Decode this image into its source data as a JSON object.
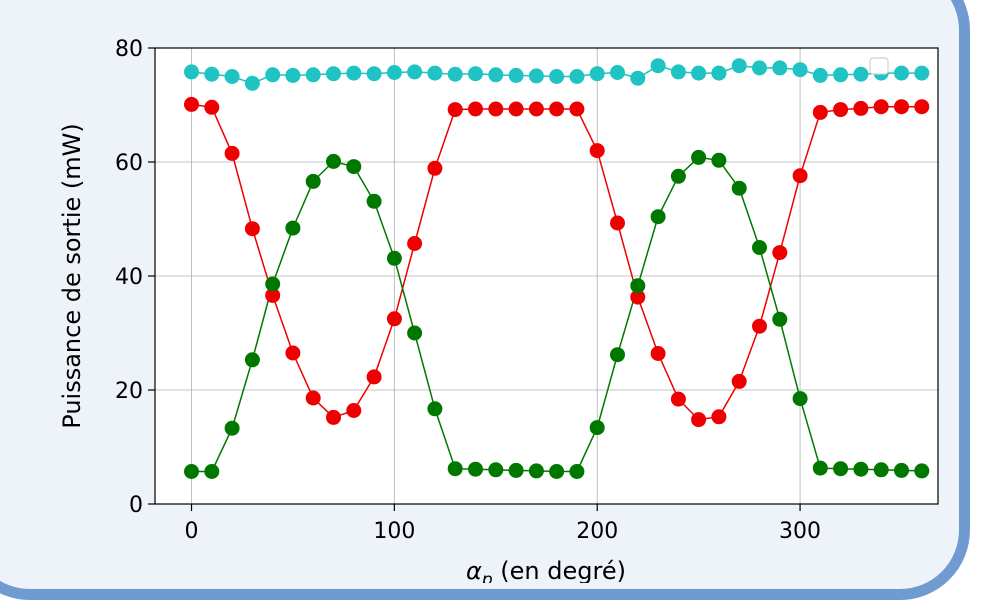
{
  "chart_data": {
    "type": "line",
    "xlabel_symbol": "α",
    "xlabel_subscript": "p",
    "xlabel_rest": " (en degré)",
    "ylabel": "Puissance de sortie (mW)",
    "xlim": [
      -18,
      368
    ],
    "ylim": [
      0,
      80
    ],
    "x_ticks": [
      0,
      100,
      200,
      300
    ],
    "y_ticks": [
      0,
      20,
      40,
      60,
      80
    ],
    "grid": true,
    "x": [
      0,
      10,
      20,
      30,
      40,
      50,
      60,
      70,
      80,
      90,
      100,
      110,
      120,
      130,
      140,
      150,
      160,
      170,
      180,
      190,
      200,
      210,
      220,
      230,
      240,
      250,
      260,
      270,
      280,
      290,
      300,
      310,
      320,
      330,
      340,
      350,
      360
    ],
    "series": [
      {
        "color": "#1fc3c3",
        "values": [
          75.8,
          75.4,
          75.0,
          73.8,
          75.3,
          75.2,
          75.3,
          75.5,
          75.6,
          75.5,
          75.7,
          75.8,
          75.6,
          75.4,
          75.5,
          75.3,
          75.2,
          75.1,
          75.0,
          75.0,
          75.5,
          75.7,
          74.7,
          76.9,
          75.8,
          75.6,
          75.6,
          76.9,
          76.5,
          76.5,
          76.2,
          75.2,
          75.3,
          75.4,
          75.6,
          75.6,
          75.6
        ]
      },
      {
        "color": "#ee0000",
        "values": [
          70.1,
          69.6,
          61.5,
          48.3,
          36.6,
          26.5,
          18.6,
          15.2,
          16.4,
          22.3,
          32.5,
          45.7,
          58.9,
          69.2,
          69.3,
          69.3,
          69.3,
          69.3,
          69.3,
          69.3,
          62.0,
          49.3,
          36.3,
          26.4,
          18.4,
          14.8,
          15.3,
          21.5,
          31.2,
          44.1,
          57.6,
          68.7,
          69.2,
          69.4,
          69.7,
          69.7,
          69.7
        ]
      },
      {
        "color": "#007800",
        "values": [
          5.7,
          5.7,
          13.3,
          25.3,
          38.6,
          48.4,
          56.6,
          60.1,
          59.2,
          53.1,
          43.1,
          30.0,
          16.7,
          6.2,
          6.1,
          6.0,
          5.9,
          5.8,
          5.7,
          5.7,
          13.4,
          26.2,
          38.3,
          50.4,
          57.5,
          60.8,
          60.3,
          55.4,
          45.0,
          32.4,
          18.5,
          6.3,
          6.2,
          6.1,
          6.0,
          5.9,
          5.8
        ]
      }
    ]
  }
}
